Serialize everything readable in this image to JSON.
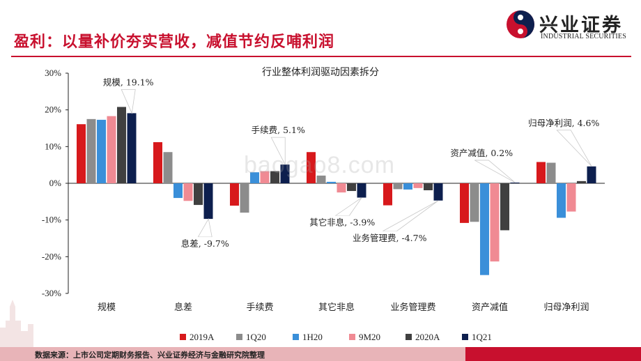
{
  "header": {
    "title": "盈利：以量补价夯实营收，减值节约反哺利润",
    "logo_cn": "兴业证券",
    "logo_en": "INDUSTRIAL SECURITIES",
    "accent_color": "#c8102e"
  },
  "watermark": "baogao8.com",
  "footer": {
    "source": "数据来源：上市公司定期财务报告、兴业证券经济与金融研究院整理"
  },
  "chart_data": {
    "type": "bar",
    "title": "行业整体利润驱动因素拆分",
    "categories": [
      "规模",
      "息差",
      "手续费",
      "其它非息",
      "业务管理费",
      "资产减值",
      "归母净利润"
    ],
    "ylim": [
      -30,
      30
    ],
    "yticks": [
      "30%",
      "20%",
      "10%",
      "0%",
      "-10%",
      "-20%",
      "-30%"
    ],
    "legend_position": "bottom",
    "series": [
      {
        "name": "2019A",
        "color": "#d7191c",
        "values": [
          16.1,
          11.2,
          -6.1,
          8.5,
          -6.0,
          -10.8,
          5.8
        ]
      },
      {
        "name": "1Q20",
        "color": "#8c8c8c",
        "values": [
          17.5,
          8.5,
          -8.0,
          2.1,
          -1.6,
          -10.5,
          5.6
        ]
      },
      {
        "name": "1H20",
        "color": "#3a8fd9",
        "values": [
          17.3,
          -4.0,
          3.0,
          0.4,
          -1.7,
          -25.0,
          -9.4
        ]
      },
      {
        "name": "9M20",
        "color": "#f08a93",
        "values": [
          18.3,
          -4.8,
          3.3,
          -2.5,
          -1.3,
          -21.3,
          -7.7
        ]
      },
      {
        "name": "2020A",
        "color": "#404040",
        "values": [
          20.8,
          -5.9,
          3.3,
          -2.1,
          -1.9,
          -12.8,
          0.6
        ]
      },
      {
        "name": "1Q21",
        "color": "#0d1f4e",
        "values": [
          19.1,
          -9.7,
          5.1,
          -3.9,
          -4.7,
          0.2,
          4.6
        ]
      }
    ],
    "annotations": [
      {
        "text": "规模, 19.1%",
        "category": "规模",
        "value": 19.1
      },
      {
        "text": "息差, -9.7%",
        "category": "息差",
        "value": -9.7
      },
      {
        "text": "手续费, 5.1%",
        "category": "手续费",
        "value": 5.1
      },
      {
        "text": "其它非息, -3.9%",
        "category": "其它非息",
        "value": -3.9
      },
      {
        "text": "业务管理费, -4.7%",
        "category": "业务管理费",
        "value": -4.7
      },
      {
        "text": "资产减值, 0.2%",
        "category": "资产减值",
        "value": 0.2
      },
      {
        "text": "归母净利润, 4.6%",
        "category": "归母净利润",
        "value": 4.6
      }
    ]
  }
}
